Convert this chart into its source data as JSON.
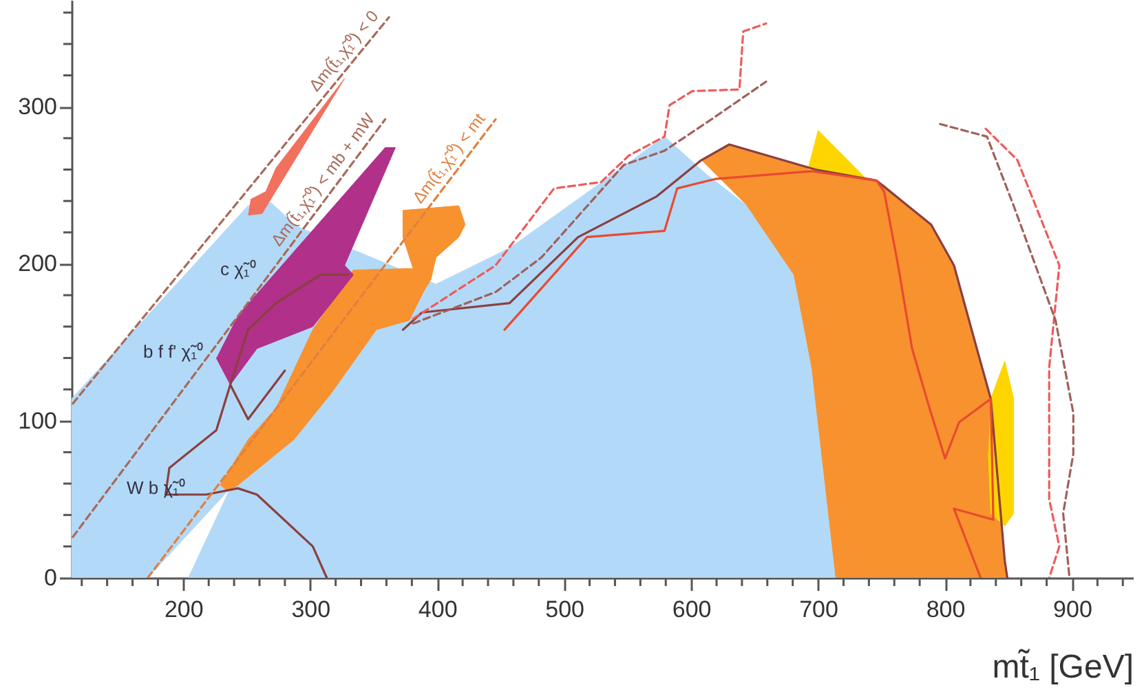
{
  "chart_data": {
    "type": "line",
    "xlabel": "mt̃₁ [GeV]",
    "xlim": [
      112,
      948
    ],
    "ylim": [
      0,
      368
    ],
    "xticks": [
      {
        "value": 120,
        "label": null
      },
      {
        "value": 140,
        "label": null
      },
      {
        "value": 160,
        "label": null
      },
      {
        "value": 180,
        "label": null
      },
      200,
      {
        "value": 220,
        "label": null
      },
      {
        "value": 240,
        "label": null
      },
      {
        "value": 260,
        "label": null
      },
      {
        "value": 280,
        "label": null
      },
      300,
      {
        "value": 320,
        "label": null
      },
      {
        "value": 340,
        "label": null
      },
      {
        "value": 360,
        "label": null
      },
      {
        "value": 380,
        "label": null
      },
      400,
      {
        "value": 420,
        "label": null
      },
      {
        "value": 440,
        "label": null
      },
      {
        "value": 460,
        "label": null
      },
      {
        "value": 480,
        "label": null
      },
      500,
      {
        "value": 520,
        "label": null
      },
      {
        "value": 540,
        "label": null
      },
      {
        "value": 560,
        "label": null
      },
      {
        "value": 580,
        "label": null
      },
      600,
      {
        "value": 620,
        "label": null
      },
      {
        "value": 640,
        "label": null
      },
      {
        "value": 660,
        "label": null
      },
      {
        "value": 680,
        "label": null
      },
      700,
      {
        "value": 720,
        "label": null
      },
      {
        "value": 740,
        "label": null
      },
      {
        "value": 760,
        "label": null
      },
      {
        "value": 780,
        "label": null
      },
      800,
      {
        "value": 820,
        "label": null
      },
      {
        "value": 840,
        "label": null
      },
      {
        "value": 860,
        "label": null
      },
      {
        "value": 880,
        "label": null
      },
      900,
      {
        "value": 920,
        "label": null
      },
      {
        "value": 940,
        "label": null
      }
    ],
    "yticks": [
      0,
      {
        "value": 20,
        "label": null
      },
      {
        "value": 40,
        "label": null
      },
      {
        "value": 60,
        "label": null
      },
      {
        "value": 80,
        "label": null
      },
      100,
      {
        "value": 120,
        "label": null
      },
      {
        "value": 140,
        "label": null
      },
      {
        "value": 160,
        "label": null
      },
      {
        "value": 180,
        "label": null
      },
      200,
      {
        "value": 220,
        "label": null
      },
      {
        "value": 240,
        "label": null
      },
      {
        "value": 260,
        "label": null
      },
      {
        "value": 280,
        "label": null
      },
      300,
      {
        "value": 320,
        "label": null
      },
      {
        "value": 340,
        "label": null
      },
      {
        "value": 360,
        "label": null
      }
    ],
    "series": [
      {
        "type": "area",
        "color": "#b3d9f8",
        "x": [
          112,
          172,
          237,
          204,
          714,
          695,
          681,
          644,
          612,
          579,
          533,
          457,
          399,
          289,
          269,
          251,
          112
        ],
        "values": [
          0,
          0,
          57,
          0,
          0,
          134,
          193,
          237,
          257,
          281,
          254,
          210,
          187,
          224,
          239,
          237,
          114
        ]
      },
      {
        "type": "area",
        "color": "#f7922f",
        "x": [
          608,
          630,
          698,
          746,
          752,
          789,
          807,
          825,
          836,
          847,
          849,
          714,
          695,
          681,
          644
        ],
        "values": [
          266,
          276,
          260,
          253,
          250,
          225,
          199,
          146,
          114,
          11,
          0,
          0,
          134,
          193,
          237
        ]
      },
      {
        "type": "area",
        "color": "#f7922f",
        "x": [
          229,
          251,
          273,
          302,
          334,
          381,
          373,
          373,
          417,
          422,
          417,
          399,
          395,
          389,
          378,
          352,
          316,
          287,
          243,
          235
        ],
        "values": [
          59,
          88,
          108,
          158,
          196,
          197,
          217,
          234,
          237,
          225,
          217,
          204,
          190,
          182,
          164,
          158,
          117,
          88,
          59,
          55
        ]
      },
      {
        "type": "area",
        "color": "#b0308a",
        "x": [
          226,
          237,
          258,
          302,
          334,
          327,
          367,
          359,
          243
        ],
        "values": [
          140,
          123,
          146,
          160,
          193,
          199,
          274,
          274,
          167
        ]
      },
      {
        "type": "area",
        "color": "#f2705e",
        "x": [
          251,
          262,
          327,
          273,
          265,
          253
        ],
        "values": [
          231,
          232,
          318,
          261,
          246,
          241
        ]
      },
      {
        "type": "area",
        "color": "#ffd500",
        "x": [
          692,
          700,
          738
        ],
        "values": [
          260,
          285,
          254
        ]
      },
      {
        "type": "area",
        "color": "#ffd500",
        "x": [
          836,
          847,
          854,
          854,
          847,
          836,
          834
        ],
        "values": [
          114,
          138,
          114,
          41,
          33,
          41,
          79
        ]
      },
      {
        "color": "#8b3f3f",
        "line_style": "solid",
        "x": [
          313,
          302,
          258,
          243,
          218,
          186,
          189,
          226,
          237,
          251,
          273,
          308,
          330
        ],
        "values": [
          0,
          20,
          53,
          57,
          53,
          53,
          70,
          94,
          123,
          158,
          175,
          193,
          193
        ]
      },
      {
        "color": "#8b3f3f",
        "line_style": "solid",
        "x": [
          237,
          251,
          280
        ],
        "values": [
          123,
          101,
          132
        ]
      },
      {
        "color": "#8b3f3f",
        "line_style": "solid",
        "x": [
          373,
          388,
          457,
          511,
          573,
          608,
          630,
          698,
          746,
          789,
          807,
          825,
          836,
          847,
          849
        ],
        "values": [
          158,
          169,
          175,
          217,
          243,
          266,
          276,
          260,
          253,
          225,
          199,
          146,
          114,
          11,
          0
        ]
      },
      {
        "color": "#e84a2f",
        "line_style": "solid",
        "x": [
          453,
          518,
          579,
          589,
          619,
          695,
          746,
          752,
          763,
          774,
          787,
          800,
          811,
          836,
          838,
          807,
          828
        ],
        "values": [
          158,
          217,
          221,
          248,
          254,
          259,
          253,
          246,
          199,
          146,
          110,
          76,
          99,
          114,
          37,
          44,
          0
        ]
      },
      {
        "color": "#f05a5a",
        "line_style": "dashed",
        "x": [
          381,
          446,
          492,
          529,
          551,
          579,
          583,
          601,
          638,
          641,
          659
        ],
        "values": [
          165,
          199,
          248,
          252,
          269,
          281,
          301,
          310,
          311,
          348,
          353
        ]
      },
      {
        "color": "#a0605a",
        "line_style": "dashed",
        "x": [
          381,
          446,
          482,
          547,
          579,
          616,
          659
        ],
        "values": [
          162,
          182,
          204,
          263,
          272,
          292,
          316
        ]
      },
      {
        "color": "#f05a5a",
        "line_style": "dashed",
        "x": [
          832,
          857,
          890,
          882,
          882,
          890,
          882
        ],
        "values": [
          286,
          266,
          199,
          134,
          50,
          20,
          0
        ]
      },
      {
        "color": "#a0605a",
        "line_style": "dashed",
        "x": [
          796,
          833,
          854,
          887,
          901,
          901,
          893,
          898
        ],
        "values": [
          289,
          281,
          237,
          164,
          105,
          79,
          41,
          0
        ]
      },
      {
        "name": "Δm(t̃₁,χ̃₁⁰) < 0",
        "color": "#a86a58",
        "line_style": "dashed",
        "x": [
          113,
          362
        ],
        "values": [
          111,
          357
        ]
      },
      {
        "name": "Δm(t̃₁,χ̃₁⁰) < mb + mW",
        "color": "#a86a58",
        "line_style": "dashed",
        "x": [
          113,
          359
        ],
        "values": [
          26,
          292
        ]
      },
      {
        "name": "Δm(t̃₁,χ̃₁⁰) < mt",
        "color": "#e08040",
        "line_style": "dashed",
        "x": [
          172,
          446
        ],
        "values": [
          0,
          292
        ]
      }
    ],
    "annotations": [
      "c χ̃₁⁰",
      "b f f' χ̃₁⁰",
      "W b χ̃₁⁰"
    ]
  }
}
